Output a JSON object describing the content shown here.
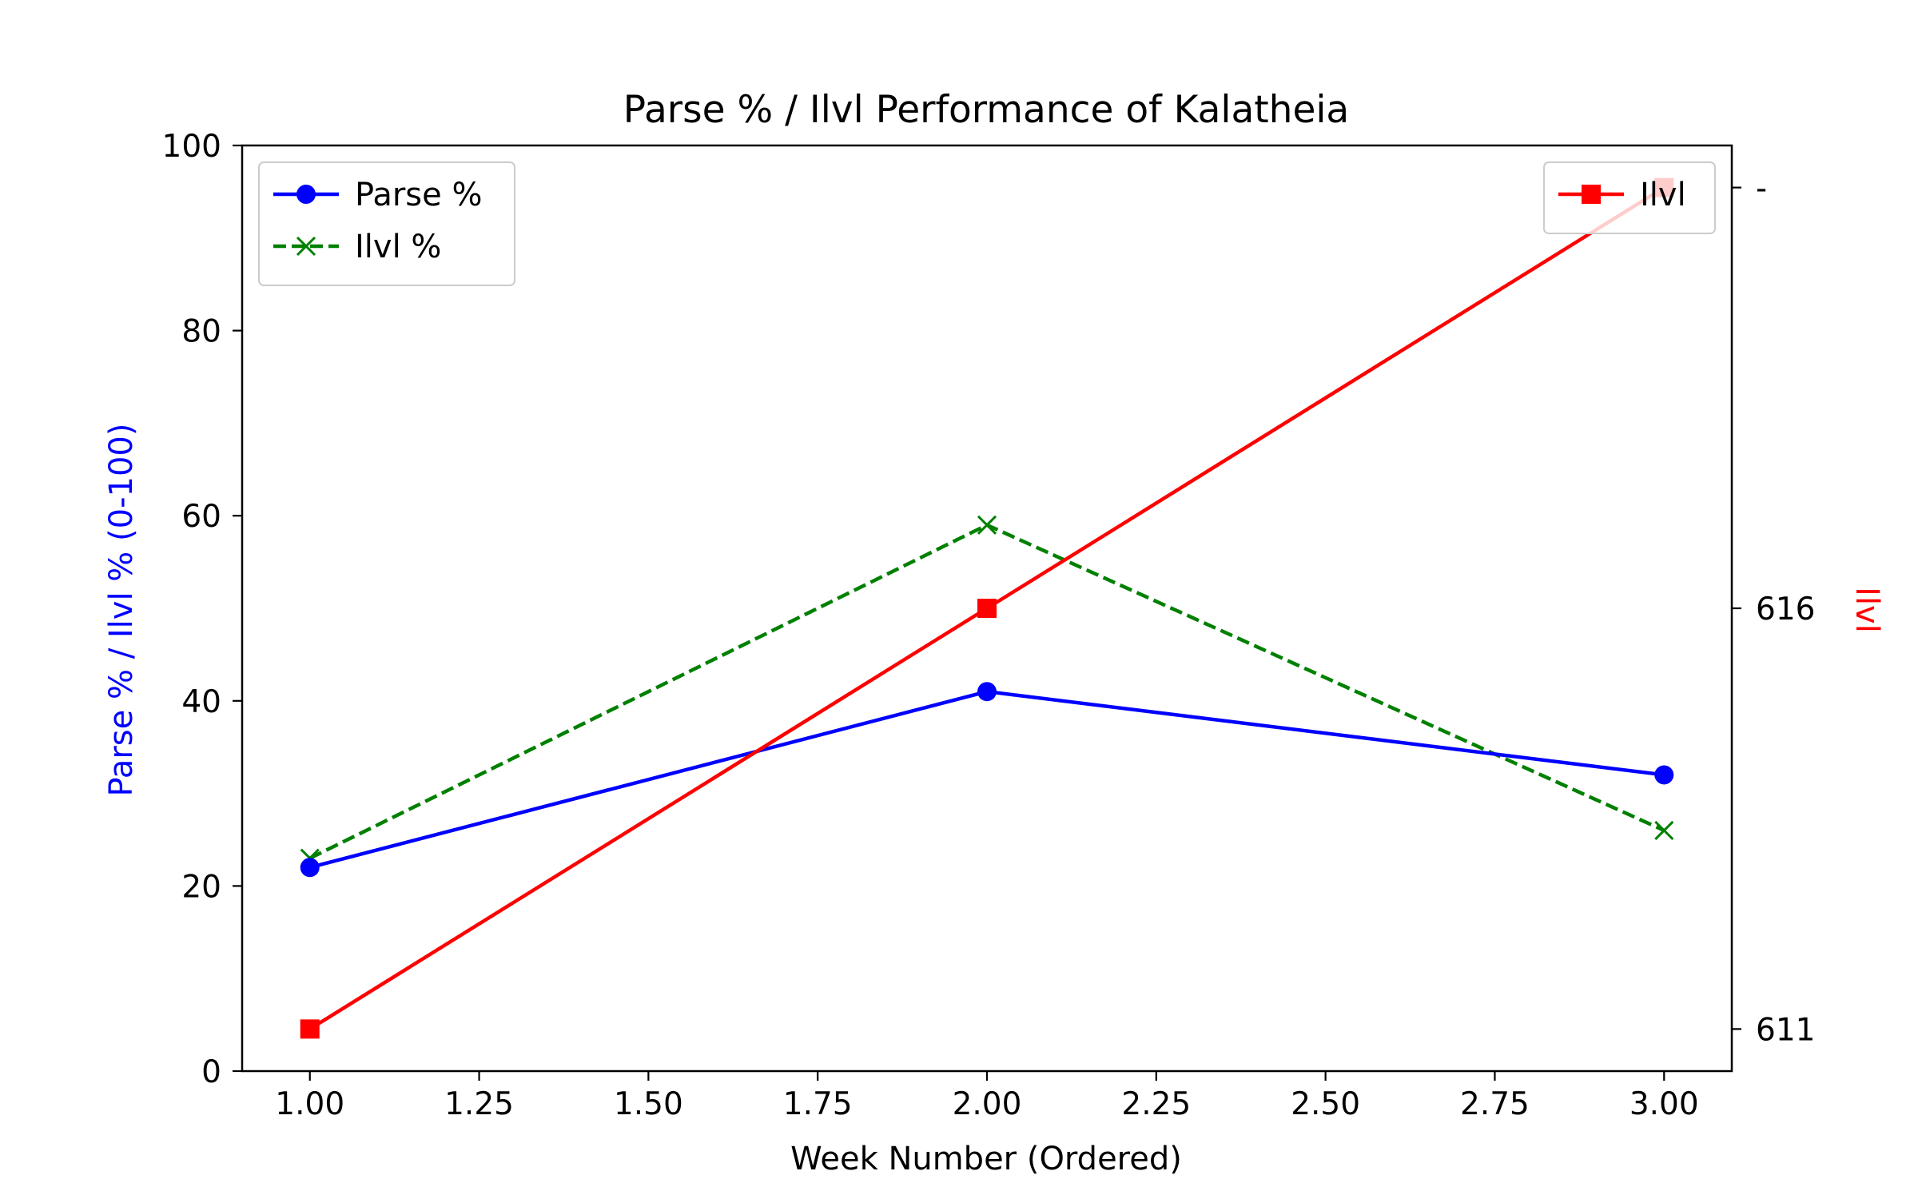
{
  "chart_data": {
    "type": "line",
    "title": "Parse % / Ilvl Performance of Kalatheia",
    "xlabel": "Week Number (Ordered)",
    "ylabel": "Parse % / Ilvl % (0-100)",
    "ylabel_right": "Ilvl",
    "x": [
      1,
      2,
      3
    ],
    "xlim": [
      0.9,
      3.1
    ],
    "xticks": [
      "1.00",
      "1.25",
      "1.50",
      "1.75",
      "2.00",
      "2.25",
      "2.50",
      "2.75",
      "3.00"
    ],
    "ylim": [
      0,
      100
    ],
    "yticks": [
      "0",
      "20",
      "40",
      "60",
      "80",
      "100"
    ],
    "ylim_right": [
      610.5,
      621.5
    ],
    "yticks_right": [
      {
        "value": 611,
        "label": "611"
      },
      {
        "value": 616,
        "label": "616"
      },
      {
        "value": 621,
        "label": "-"
      }
    ],
    "grid": false,
    "series": [
      {
        "name": "Parse %",
        "axis": "left",
        "values": [
          22,
          41,
          32
        ],
        "color": "#0000ff",
        "style": "solid",
        "marker": "circle"
      },
      {
        "name": "Ilvl %",
        "axis": "left",
        "values": [
          23,
          59,
          26
        ],
        "color": "#008000",
        "style": "dashed",
        "marker": "x"
      },
      {
        "name": "Ilvl",
        "axis": "right",
        "values": [
          611,
          616,
          621
        ],
        "color": "#ff0000",
        "style": "solid",
        "marker": "square"
      }
    ],
    "legend_left_position": "upper-left",
    "legend_right_position": "upper-right"
  },
  "colors": {
    "left_axis_label": "#0000ff",
    "right_axis_label": "#ff0000",
    "frame": "#000000",
    "legend_border": "#cccccc"
  }
}
